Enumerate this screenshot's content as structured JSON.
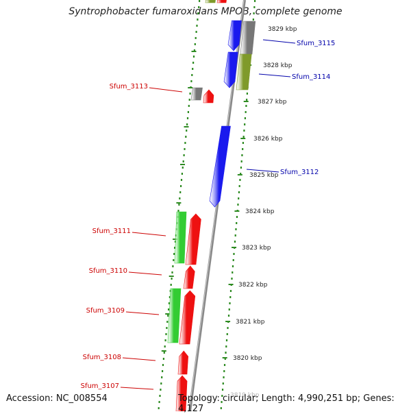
{
  "title": "Syntrophobacter fumaroxidans MPOB, complete genome",
  "footer": {
    "accession": "Accession: NC_008554",
    "topology": "Topology: circular; Length: 4,990,251 bp; Genes: 4,127"
  },
  "colors": {
    "backbone": "#888888",
    "tick": "#2e8b22",
    "red": "#ee1111",
    "green": "#33cc33",
    "blue": "#1a1aee",
    "gray": "#777777",
    "olive": "#7f9a2a",
    "label_red": "#cc0000",
    "label_blue": "#0000aa"
  },
  "kbp_labels": [
    "3829 kbp",
    "3828 kbp",
    "3827 kbp",
    "3826 kbp",
    "3825 kbp",
    "3824 kbp",
    "3823 kbp",
    "3822 kbp",
    "3821 kbp",
    "3820 kbp",
    "3819 kbp"
  ],
  "gene_labels": [
    {
      "name": "Sfum_3115",
      "color": "blue"
    },
    {
      "name": "Sfum_3114",
      "color": "blue"
    },
    {
      "name": "Sfum_3113",
      "color": "red"
    },
    {
      "name": "Sfum_3112",
      "color": "blue"
    },
    {
      "name": "Sfum_3111",
      "color": "red"
    },
    {
      "name": "Sfum_3110",
      "color": "red"
    },
    {
      "name": "Sfum_3109",
      "color": "red"
    },
    {
      "name": "Sfum_3108",
      "color": "red"
    },
    {
      "name": "Sfum_3107",
      "color": "red"
    }
  ]
}
